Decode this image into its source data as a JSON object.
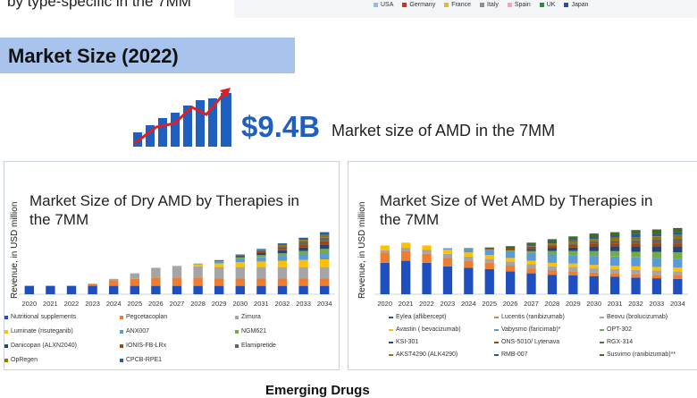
{
  "top": {
    "caption": "by type-specific in the 7MM",
    "legend": [
      {
        "label": "USA",
        "color": "#9bb7e8"
      },
      {
        "label": "Germany",
        "color": "#c0392b"
      },
      {
        "label": "France",
        "color": "#f0b429"
      },
      {
        "label": "Italy",
        "color": "#8e8e8e"
      },
      {
        "label": "Spain",
        "color": "#f4a6b8"
      },
      {
        "label": "UK",
        "color": "#2e8b3d"
      },
      {
        "label": "Japan",
        "color": "#1f4fbf"
      }
    ]
  },
  "section": {
    "title": "Market Size (2022)"
  },
  "headline": {
    "value": "$9.4B",
    "label": "Market size of AMD in the 7MM",
    "icon": "growth-bar-chart-icon",
    "accent": "#1f5fbf",
    "arrow_color": "#e02020"
  },
  "footer": {
    "heading": "Emerging Drugs"
  },
  "chart_data": [
    {
      "type": "bar",
      "stacked": true,
      "title": "Market Size of Dry AMD by Therapies in the 7MM",
      "xlabel": "",
      "ylabel": "Revenue, in USD million",
      "categories": [
        "2020",
        "2021",
        "2022",
        "2023",
        "2024",
        "2025",
        "2026",
        "2027",
        "2028",
        "2029",
        "2030",
        "2031",
        "2032",
        "2033",
        "2034"
      ],
      "ylim": [
        0,
        100
      ],
      "series": [
        {
          "name": "Nutritional supplements",
          "color": "#1f4fbf",
          "values": [
            12,
            12,
            12,
            12,
            12,
            12,
            12,
            12,
            12,
            12,
            12,
            12,
            12,
            12,
            12
          ]
        },
        {
          "name": "Pegcetacoplan",
          "color": "#ed7d31",
          "values": [
            0,
            0,
            0,
            3,
            8,
            10,
            12,
            12,
            12,
            11,
            11,
            11,
            11,
            11,
            11
          ]
        },
        {
          "name": "Zimura",
          "color": "#a5a5a5",
          "values": [
            0,
            0,
            0,
            0,
            2,
            8,
            14,
            16,
            16,
            16,
            16,
            16,
            16,
            16,
            16
          ]
        },
        {
          "name": "Luminate (risuteganib)",
          "color": "#ffc000",
          "values": [
            0,
            0,
            0,
            0,
            0,
            0,
            0,
            1,
            3,
            5,
            7,
            8,
            9,
            10,
            11
          ]
        },
        {
          "name": "ANX007",
          "color": "#5b9bd5",
          "values": [
            0,
            0,
            0,
            0,
            0,
            0,
            0,
            0,
            1,
            3,
            5,
            6,
            7,
            8,
            9
          ]
        },
        {
          "name": "NGM621",
          "color": "#70ad47",
          "values": [
            0,
            0,
            0,
            0,
            0,
            0,
            0,
            0,
            0,
            1,
            2,
            3,
            4,
            5,
            6
          ]
        },
        {
          "name": "Danicopan (ALXN2040)",
          "color": "#264478",
          "values": [
            0,
            0,
            0,
            0,
            0,
            0,
            0,
            0,
            0,
            1,
            2,
            3,
            4,
            5,
            6
          ]
        },
        {
          "name": "IONIS-FB-LRx",
          "color": "#9e480e",
          "values": [
            0,
            0,
            0,
            0,
            0,
            0,
            0,
            0,
            0,
            0,
            1,
            2,
            3,
            4,
            5
          ]
        },
        {
          "name": "Elamipretide",
          "color": "#636363",
          "values": [
            0,
            0,
            0,
            0,
            0,
            0,
            0,
            0,
            0,
            0,
            1,
            2,
            3,
            4,
            5
          ]
        },
        {
          "name": "OpRegen",
          "color": "#997300",
          "values": [
            0,
            0,
            0,
            0,
            0,
            0,
            0,
            0,
            0,
            0,
            0,
            1,
            2,
            3,
            4
          ]
        },
        {
          "name": "CPCB-RPE1",
          "color": "#255e91",
          "values": [
            0,
            0,
            0,
            0,
            0,
            0,
            0,
            0,
            0,
            0,
            0,
            1,
            2,
            3,
            4
          ]
        }
      ]
    },
    {
      "type": "bar",
      "stacked": true,
      "title": "Market Size of Wet AMD by Therapies in the 7MM",
      "xlabel": "",
      "ylabel": "Revenue, in USD million",
      "categories": [
        "2020",
        "2021",
        "2022",
        "2023",
        "2024",
        "2025",
        "2026",
        "2027",
        "2028",
        "2029",
        "2030",
        "2031",
        "2032",
        "2033",
        "2034"
      ],
      "ylim": [
        0,
        100
      ],
      "series": [
        {
          "name": "Eylea (aflibercept)",
          "color": "#1f4fbf",
          "values": [
            45,
            48,
            45,
            40,
            38,
            36,
            33,
            30,
            28,
            27,
            26,
            25,
            24,
            23,
            22
          ]
        },
        {
          "name": "Lucentis (ranibizumab)",
          "color": "#ed7d31",
          "values": [
            15,
            14,
            13,
            12,
            10,
            9,
            8,
            7,
            6,
            6,
            5,
            5,
            5,
            5,
            5
          ]
        },
        {
          "name": "Beovu (brolucizumab)",
          "color": "#a5a5a5",
          "values": [
            3,
            5,
            6,
            6,
            6,
            6,
            6,
            6,
            6,
            6,
            6,
            6,
            6,
            6,
            6
          ]
        },
        {
          "name": "Avastin ( bevacizumab)",
          "color": "#ffc000",
          "values": [
            7,
            7,
            6,
            6,
            6,
            5,
            5,
            5,
            5,
            5,
            5,
            5,
            5,
            5,
            5
          ]
        },
        {
          "name": "Vabysmo (faricimab)*",
          "color": "#5b9bd5",
          "values": [
            0,
            0,
            0,
            2,
            5,
            8,
            10,
            11,
            12,
            12,
            13,
            13,
            13,
            13,
            13
          ]
        },
        {
          "name": "OPT-302",
          "color": "#70ad47",
          "values": [
            0,
            0,
            0,
            0,
            0,
            0,
            1,
            3,
            5,
            6,
            7,
            8,
            8,
            9,
            9
          ]
        },
        {
          "name": "KSI-301",
          "color": "#264478",
          "values": [
            0,
            0,
            0,
            0,
            0,
            0,
            1,
            3,
            4,
            5,
            6,
            6,
            7,
            7,
            8
          ]
        },
        {
          "name": "ONS-5010/ Lytenava",
          "color": "#9e480e",
          "values": [
            0,
            0,
            0,
            0,
            0,
            1,
            2,
            3,
            4,
            4,
            5,
            5,
            5,
            5,
            5
          ]
        },
        {
          "name": "RGX-314",
          "color": "#636363",
          "values": [
            0,
            0,
            0,
            0,
            0,
            0,
            0,
            0,
            1,
            2,
            3,
            4,
            5,
            6,
            7
          ]
        },
        {
          "name": "AKST4290 (ALK4290)",
          "color": "#997300",
          "values": [
            0,
            0,
            0,
            0,
            0,
            0,
            0,
            1,
            2,
            3,
            3,
            4,
            4,
            4,
            5
          ]
        },
        {
          "name": "RMB-007",
          "color": "#255e91",
          "values": [
            0,
            0,
            0,
            0,
            0,
            0,
            0,
            1,
            2,
            2,
            3,
            3,
            4,
            4,
            4
          ]
        },
        {
          "name": "Susvimo (ranibizumab)**",
          "color": "#43682b",
          "values": [
            0,
            0,
            0,
            0,
            1,
            2,
            3,
            4,
            4,
            5,
            5,
            5,
            6,
            6,
            6
          ]
        }
      ]
    }
  ]
}
